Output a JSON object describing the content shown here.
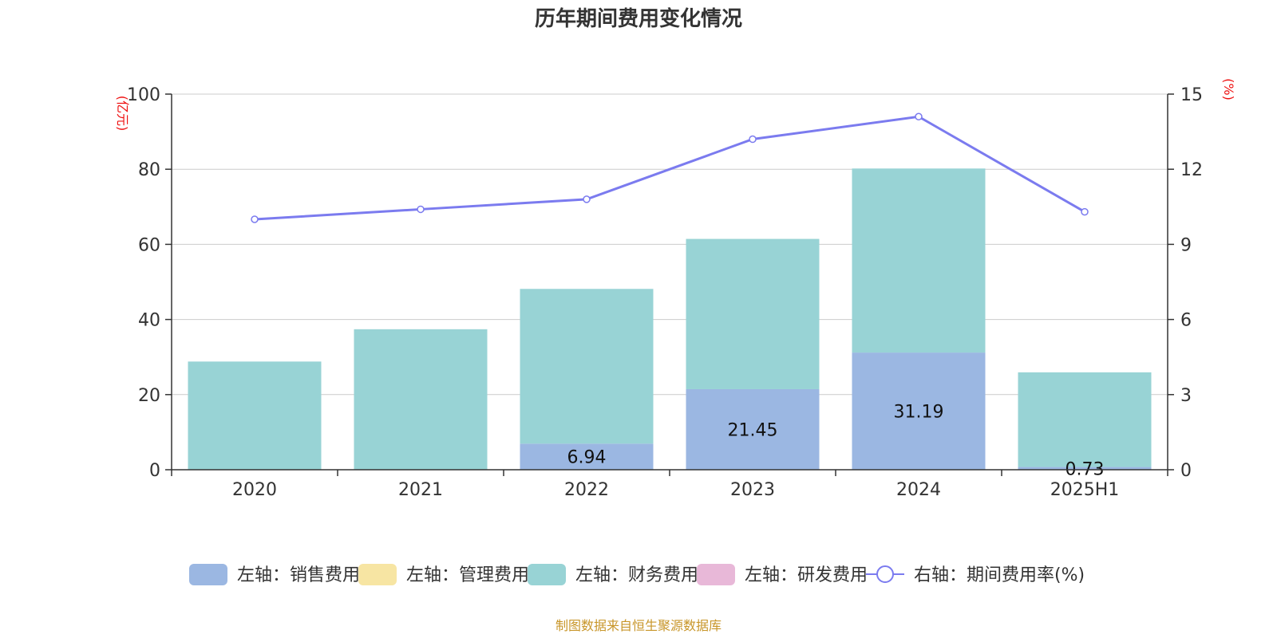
{
  "title": "历年期间费用变化情况",
  "source": "制图数据来自恒生聚源数据库",
  "colors": {
    "sales": "#9bb7e2",
    "admin": "#f7e5a3",
    "finance": "#98d3d5",
    "rd": "#e8b8d8",
    "rate": "#7b7bef",
    "unit": "#ee1111",
    "source": "#c8962a",
    "grid": "#cccccc",
    "axis": "#333333"
  },
  "chart_data": {
    "type": "bar",
    "categories": [
      "2020",
      "2021",
      "2022",
      "2023",
      "2024",
      "2025H1"
    ],
    "series": [
      {
        "name": "左轴：销售费用",
        "key": "sales",
        "axis": "left",
        "values": [
          0,
          0,
          6.94,
          21.45,
          31.19,
          0.73
        ],
        "labels": [
          "",
          "",
          "6.94",
          "21.45",
          "31.19",
          "0.73"
        ]
      },
      {
        "name": "左轴：管理费用",
        "key": "admin",
        "axis": "left",
        "values": [
          0,
          0,
          0,
          0,
          0,
          0
        ]
      },
      {
        "name": "左轴：财务费用",
        "key": "finance",
        "axis": "left",
        "values": [
          28.8,
          37.4,
          41.2,
          40.0,
          49.0,
          25.2
        ]
      },
      {
        "name": "左轴：研发费用",
        "key": "rd",
        "axis": "left",
        "values": [
          0,
          0,
          0,
          0,
          0,
          0
        ]
      },
      {
        "name": "右轴：期间费用率(%)",
        "key": "rate",
        "axis": "right",
        "type": "line",
        "values": [
          10.0,
          10.4,
          10.8,
          13.2,
          14.1,
          10.3
        ]
      }
    ],
    "left_axis": {
      "unit": "(亿元)",
      "min": 0,
      "max": 100,
      "ticks": [
        0,
        20,
        40,
        60,
        80,
        100
      ]
    },
    "right_axis": {
      "unit": "(%)",
      "min": 0,
      "max": 15,
      "ticks": [
        0,
        3,
        6,
        9,
        12,
        15
      ]
    },
    "stacked": true,
    "grid": true,
    "legend_position": "bottom"
  }
}
